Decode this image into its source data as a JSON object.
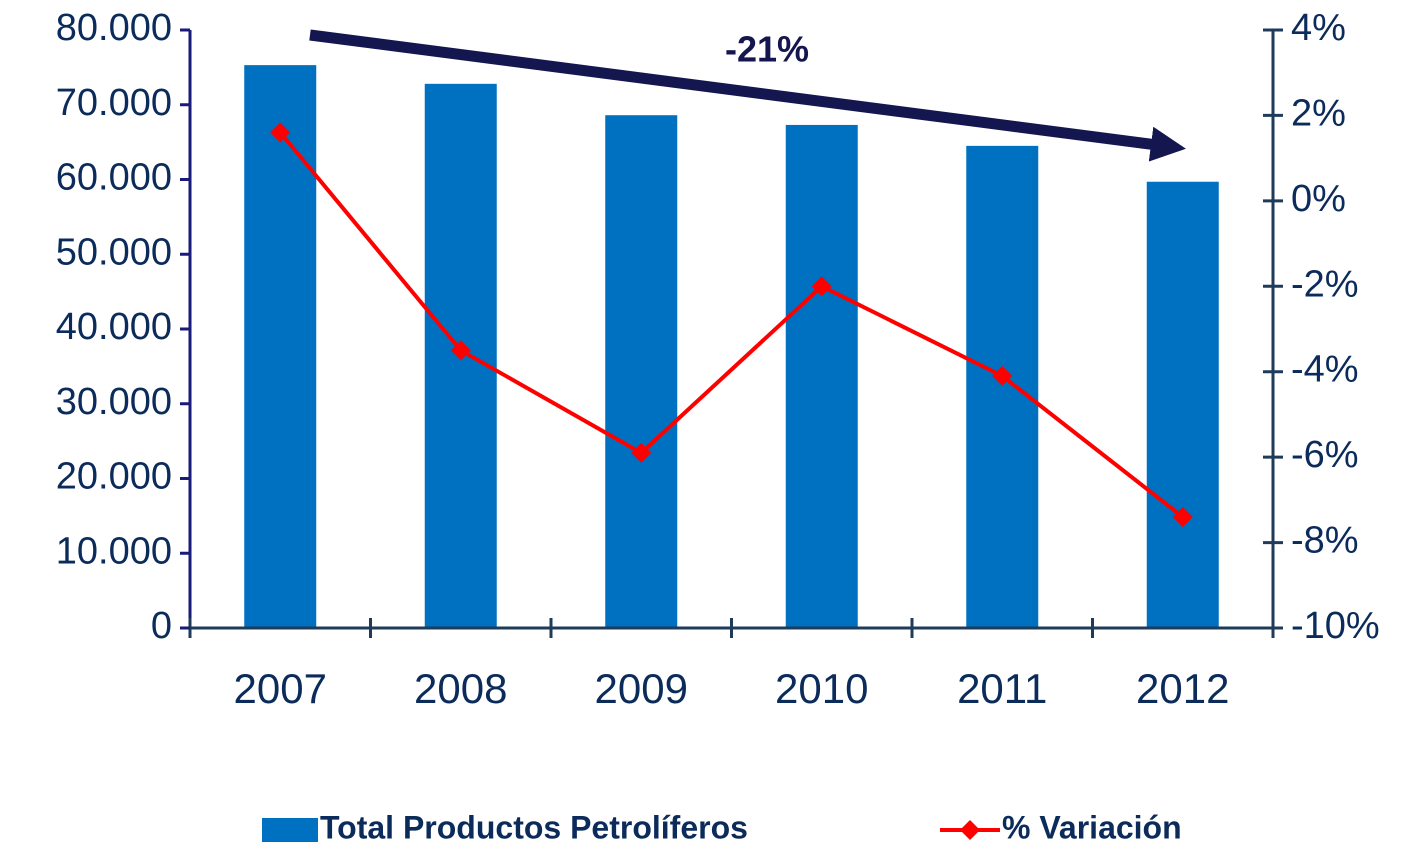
{
  "chart_data": {
    "type": "bar",
    "categories": [
      "2007",
      "2008",
      "2009",
      "2010",
      "2011",
      "2012"
    ],
    "series": [
      {
        "name": "Total Productos Petrolíferos",
        "type": "bar",
        "color": "#0070c0",
        "values": [
          75300,
          72800,
          68600,
          67300,
          64500,
          59700
        ]
      },
      {
        "name": "% Variación",
        "type": "line",
        "axis": "y2",
        "color": "#ff0000",
        "values": [
          1.6,
          -3.5,
          -5.9,
          -2.0,
          -4.1,
          -7.4
        ]
      }
    ],
    "ylim": [
      0,
      80000
    ],
    "yticks": [
      0,
      {
        "value": 10000,
        "label": "10.000"
      },
      {
        "value": 20000,
        "label": "20.000"
      },
      {
        "value": 30000,
        "label": "30.000"
      },
      {
        "value": 40000,
        "label": "40.000"
      },
      {
        "value": 50000,
        "label": "50.000"
      },
      {
        "value": 60000,
        "label": "60.000"
      },
      {
        "value": 70000,
        "label": "70.000"
      },
      {
        "value": 80000,
        "label": "80.000"
      }
    ],
    "y2lim": [
      -10,
      4
    ],
    "y2ticks": [
      {
        "value": -10,
        "label": "-10%"
      },
      {
        "value": -8,
        "label": "-8%"
      },
      {
        "value": -6,
        "label": "-6%"
      },
      {
        "value": -4,
        "label": "-4%"
      },
      {
        "value": -2,
        "label": "-2%"
      },
      {
        "value": 0,
        "label": "0%"
      },
      {
        "value": 2,
        "label": "2%"
      },
      {
        "value": 4,
        "label": "4%"
      }
    ],
    "annotation": "-21%",
    "legend": "bottom",
    "grid": false
  }
}
